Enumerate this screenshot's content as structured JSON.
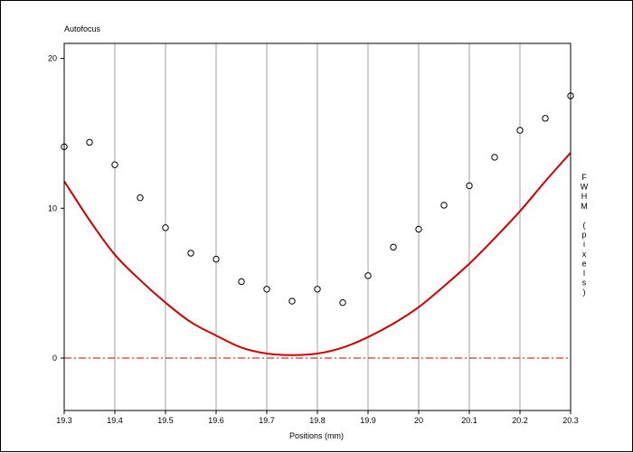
{
  "chart_data": {
    "type": "scatter",
    "title": "Autofocus",
    "xlabel": "Positions (mm)",
    "ylabel": "FWHM (pixels)",
    "xlim": [
      19.3,
      20.3
    ],
    "ylim": [
      -3.5,
      21
    ],
    "x_ticks": [
      19.3,
      19.4,
      19.5,
      19.6,
      19.7,
      19.8,
      19.9,
      20,
      20.1,
      20.2,
      20.3
    ],
    "x_tick_labels": [
      "19.3",
      "19.4",
      "19.5",
      "19.6",
      "19.7",
      "19.8",
      "19.9",
      "20",
      "20.1",
      "20.2",
      "20.3"
    ],
    "y_tick_labels": [
      {
        "value": 20,
        "label": "20"
      },
      {
        "value": 10,
        "label": "10"
      },
      {
        "value": 0,
        "label": "0"
      }
    ],
    "grid": "vertical",
    "reference_line": {
      "y": 0,
      "color": "#cc0000",
      "style": "dash-dot"
    },
    "series": [
      {
        "kind": "points",
        "marker": "open-circle",
        "color": "#000000",
        "x": [
          19.3,
          19.35,
          19.4,
          19.45,
          19.5,
          19.55,
          19.6,
          19.65,
          19.7,
          19.75,
          19.8,
          19.85,
          19.9,
          19.95,
          20.0,
          20.05,
          20.1,
          20.15,
          20.2,
          20.25,
          20.3
        ],
        "y": [
          14.1,
          14.4,
          12.9,
          10.7,
          8.7,
          7.0,
          6.6,
          5.1,
          4.6,
          3.8,
          4.6,
          3.7,
          5.5,
          7.4,
          8.6,
          10.2,
          11.5,
          13.4,
          15.2,
          16.0,
          17.5
        ]
      },
      {
        "kind": "fit",
        "color": "#cc0000",
        "x": [
          19.3,
          19.35,
          19.4,
          19.45,
          19.5,
          19.55,
          19.6,
          19.65,
          19.7,
          19.75,
          19.8,
          19.85,
          19.9,
          19.95,
          20.0,
          20.05,
          20.1,
          20.15,
          20.2,
          20.25,
          20.3
        ],
        "y": [
          11.8,
          9.2,
          6.9,
          5.2,
          3.7,
          2.4,
          1.5,
          0.7,
          0.3,
          0.2,
          0.3,
          0.7,
          1.4,
          2.3,
          3.4,
          4.8,
          6.3,
          8.0,
          9.8,
          11.8,
          13.7
        ]
      }
    ]
  }
}
